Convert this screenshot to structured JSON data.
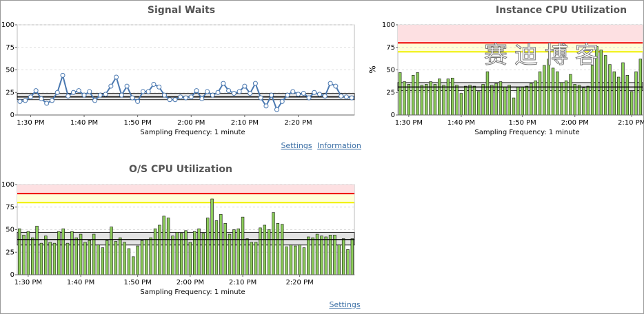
{
  "watermark": "赛迪博客",
  "chart_data": [
    {
      "type": "line",
      "title": "Signal Waits",
      "xlabel": "Sampling Frequency: 1 minute",
      "color": "#4a78b0",
      "categories": [
        null,
        null,
        "1:30 PM",
        null,
        null,
        null,
        null,
        null,
        null,
        null,
        null,
        null,
        "1:40 PM",
        null,
        null,
        null,
        null,
        null,
        null,
        null,
        null,
        null,
        "1:50 PM",
        null,
        null,
        null,
        null,
        null,
        null,
        null,
        null,
        null,
        "2:00 PM",
        null,
        null,
        null,
        null,
        null,
        null,
        null,
        null,
        null,
        "2:10 PM",
        null,
        null,
        null,
        null,
        null,
        null,
        null,
        null,
        null,
        "2:20 PM",
        null,
        null,
        null,
        null,
        null,
        null,
        null,
        null,
        null,
        null
      ],
      "values": [
        15,
        16,
        20,
        27,
        18,
        13,
        16,
        25,
        44,
        21,
        25,
        27,
        22,
        26,
        16,
        22,
        23,
        32,
        42,
        22,
        32,
        19,
        15,
        26,
        26,
        34,
        31,
        22,
        17,
        17,
        20,
        19,
        20,
        27,
        18,
        26,
        22,
        25,
        35,
        27,
        24,
        26,
        32,
        24,
        35,
        19,
        10,
        22,
        6,
        15,
        22,
        26,
        23,
        24,
        19,
        25,
        23,
        21,
        35,
        32,
        21,
        20,
        19
      ],
      "ylim": [
        0,
        100
      ],
      "yticks": [
        0,
        25,
        50,
        75,
        100
      ],
      "grid": true,
      "band": [
        17,
        24
      ],
      "mean": 20,
      "links": [
        "Settings",
        "Information"
      ]
    },
    {
      "type": "bar",
      "title": "Instance CPU Utilization",
      "ylabel": "%",
      "xlabel": "Sampling Frequency: 1 minute",
      "color": "#8ccc5a",
      "categories": [
        null,
        null,
        "1:30 PM",
        null,
        null,
        null,
        null,
        null,
        null,
        null,
        null,
        null,
        null,
        null,
        "1:40 PM",
        null,
        null,
        null,
        null,
        null,
        null,
        null,
        null,
        null,
        null,
        null,
        null,
        null,
        "1:50 PM",
        null,
        null,
        null,
        null,
        null,
        null,
        null,
        null,
        null,
        null,
        null,
        "2:00 PM",
        null,
        null,
        null,
        null,
        null,
        null,
        null,
        null,
        null,
        null,
        null,
        null,
        "2:10 PM",
        null,
        null
      ],
      "values": [
        47,
        37,
        34,
        44,
        47,
        33,
        34,
        37,
        34,
        40,
        33,
        40,
        41,
        33,
        24,
        32,
        33,
        32,
        26,
        34,
        48,
        33,
        35,
        37,
        31,
        33,
        19,
        31,
        31,
        32,
        35,
        38,
        48,
        55,
        62,
        52,
        48,
        36,
        38,
        45,
        34,
        33,
        30,
        32,
        55,
        76,
        72,
        66,
        56,
        48,
        42,
        58,
        44,
        26,
        48,
        62
      ],
      "ylim": [
        0,
        100
      ],
      "yticks": [
        0,
        25,
        50,
        75,
        100
      ],
      "grid": true,
      "band": [
        27,
        36
      ],
      "mean": 31,
      "warning": 70,
      "critical": 80,
      "links": []
    },
    {
      "type": "bar",
      "title": "O/S CPU Utilization",
      "xlabel": "Sampling Frequency: 1 minute",
      "color": "#8ccc5a",
      "categories": [
        null,
        null,
        "1:30 PM",
        null,
        null,
        null,
        null,
        null,
        null,
        null,
        null,
        null,
        null,
        null,
        "1:40 PM",
        null,
        null,
        null,
        null,
        null,
        null,
        null,
        null,
        null,
        null,
        null,
        null,
        "1:50 PM",
        null,
        null,
        null,
        null,
        null,
        null,
        null,
        null,
        null,
        null,
        null,
        "2:00 PM",
        null,
        null,
        null,
        null,
        null,
        null,
        null,
        null,
        null,
        null,
        null,
        "2:10 PM",
        null,
        null,
        null,
        null,
        null,
        null,
        null,
        null,
        null,
        null,
        null,
        null,
        "2:20 PM",
        null,
        null,
        null,
        null,
        null,
        null,
        null,
        null,
        null,
        null,
        null,
        null
      ],
      "values": [
        51,
        44,
        48,
        41,
        54,
        35,
        43,
        36,
        35,
        48,
        51,
        35,
        48,
        41,
        45,
        36,
        38,
        45,
        33,
        30,
        38,
        53,
        37,
        41,
        36,
        29,
        20,
        32,
        38,
        39,
        41,
        51,
        55,
        65,
        63,
        43,
        47,
        46,
        49,
        36,
        48,
        51,
        46,
        63,
        84,
        60,
        67,
        57,
        45,
        50,
        51,
        64,
        40,
        36,
        36,
        52,
        55,
        50,
        69,
        57,
        56,
        31,
        33,
        32,
        33,
        30,
        42,
        41,
        45,
        43,
        42,
        44,
        44,
        33,
        40,
        28,
        40
      ],
      "ylim": [
        0,
        100
      ],
      "yticks": [
        0,
        25,
        50,
        75,
        100
      ],
      "grid": true,
      "band": [
        33,
        47
      ],
      "mean": 39,
      "warning": 80,
      "critical": 90,
      "links": [
        "Settings"
      ]
    }
  ]
}
